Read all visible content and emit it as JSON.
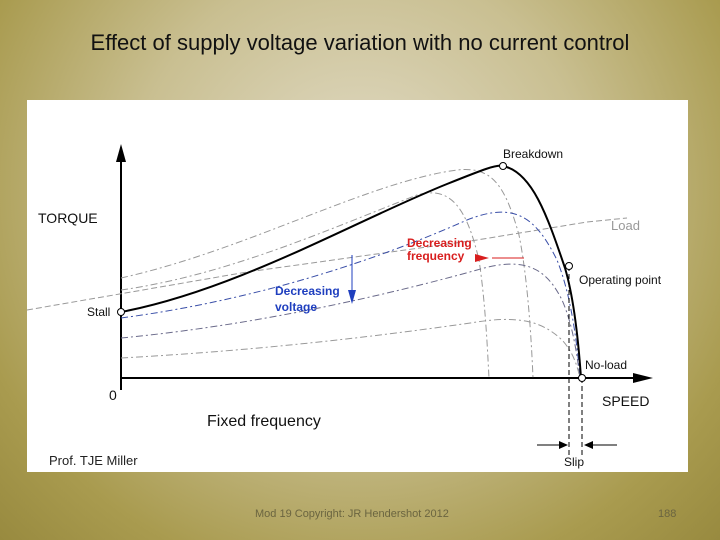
{
  "slide": {
    "title": "Effect of supply voltage variation with no current control",
    "credit": "Prof. TJE Miller",
    "caption": "Fixed frequency",
    "footer": "Mod 19 Copyright: JR Hendershot 2012",
    "page_number": "188"
  },
  "diagram": {
    "y_axis_label": "TORQUE",
    "x_axis_label": "SPEED",
    "origin_label": "0",
    "labels": {
      "breakdown": "Breakdown",
      "load": "Load",
      "stall": "Stall",
      "operating_point": "Operating point",
      "no_load": "No-load",
      "slip": "Slip",
      "decreasing_voltage_1": "Decreasing",
      "decreasing_voltage_2": "voltage",
      "decreasing_frequency_1": "Decreasing",
      "decreasing_frequency_2": "frequency"
    },
    "colors": {
      "voltage_annotation": "#1f3fbf",
      "frequency_annotation": "#d81e1e",
      "load_line": "#999999",
      "main_curve": "#000000"
    }
  }
}
